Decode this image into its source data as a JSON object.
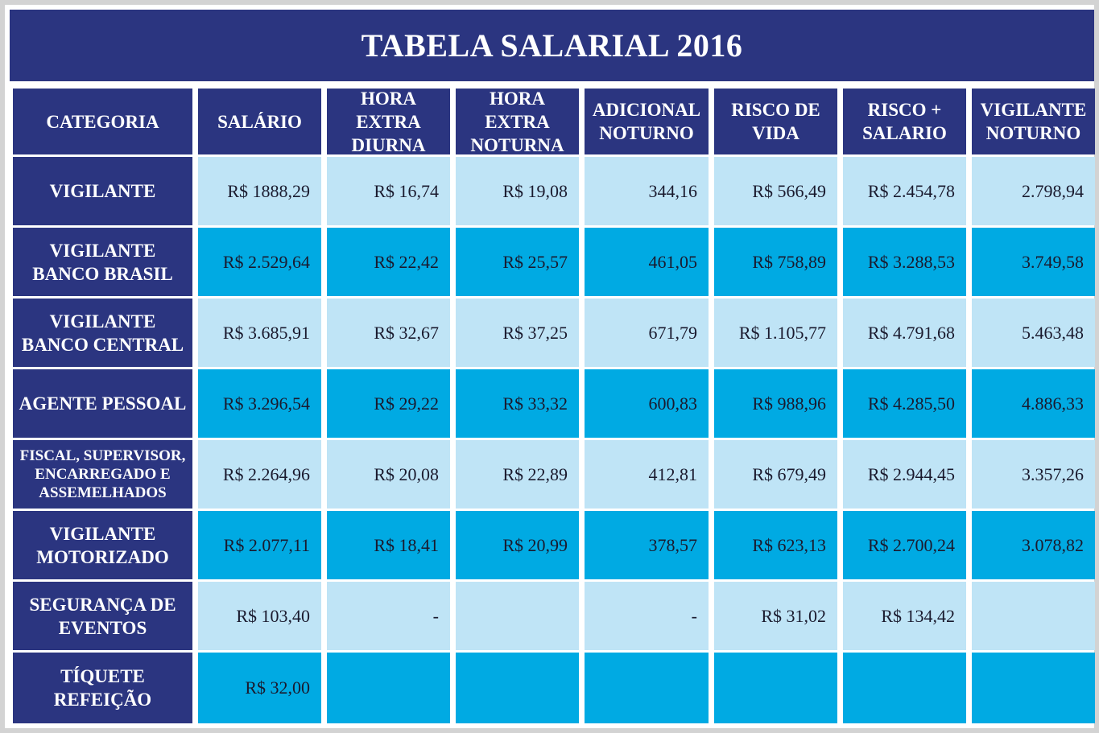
{
  "title": "TABELA SALARIAL 2016",
  "colors": {
    "header_bg": "#2b3580",
    "row_light": "#bfe4f6",
    "row_dark": "#00aae3"
  },
  "headers": [
    "CATEGORIA",
    "SALÁRIO",
    "HORA EXTRA\nDIURNA",
    "HORA EXTRA\nNOTURNA",
    "ADICIONAL\nNOTURNO",
    "RISCO DE\nVIDA",
    "RISCO +\nSALARIO",
    "VIGILANTE\nNOTURNO"
  ],
  "rows": [
    {
      "categoria": "VIGILANTE",
      "values": [
        "R$ 1888,29",
        "R$ 16,74",
        "R$ 19,08",
        "344,16",
        "R$ 566,49",
        "R$ 2.454,78",
        "2.798,94"
      ]
    },
    {
      "categoria": "VIGILANTE\nBANCO BRASIL",
      "values": [
        "R$ 2.529,64",
        "R$ 22,42",
        "R$ 25,57",
        "461,05",
        "R$ 758,89",
        "R$ 3.288,53",
        "3.749,58"
      ]
    },
    {
      "categoria": "VIGILANTE\nBANCO CENTRAL",
      "values": [
        "R$ 3.685,91",
        "R$ 32,67",
        "R$ 37,25",
        "671,79",
        "R$ 1.105,77",
        "R$ 4.791,68",
        "5.463,48"
      ]
    },
    {
      "categoria": "AGENTE PESSOAL",
      "values": [
        "R$ 3.296,54",
        "R$ 29,22",
        "R$ 33,32",
        "600,83",
        "R$ 988,96",
        "R$ 4.285,50",
        "4.886,33"
      ]
    },
    {
      "categoria": "FISCAL, SUPERVISOR,\nENCARREGADO E\nASSEMELHADOS",
      "values": [
        "R$ 2.264,96",
        "R$ 20,08",
        "R$ 22,89",
        "412,81",
        "R$ 679,49",
        "R$ 2.944,45",
        "3.357,26"
      ]
    },
    {
      "categoria": "VIGILANTE\nMOTORIZADO",
      "values": [
        "R$ 2.077,11",
        "R$ 18,41",
        "R$ 20,99",
        "378,57",
        "R$ 623,13",
        "R$ 2.700,24",
        "3.078,82"
      ]
    },
    {
      "categoria": "SEGURANÇA DE\nEVENTOS",
      "values": [
        "R$ 103,40",
        "-",
        "",
        "-",
        "R$ 31,02",
        "R$ 134,42",
        ""
      ]
    },
    {
      "categoria": "TÍQUETE\nREFEIÇÃO",
      "values": [
        "R$ 32,00",
        "",
        "",
        "",
        "",
        "",
        ""
      ]
    }
  ]
}
